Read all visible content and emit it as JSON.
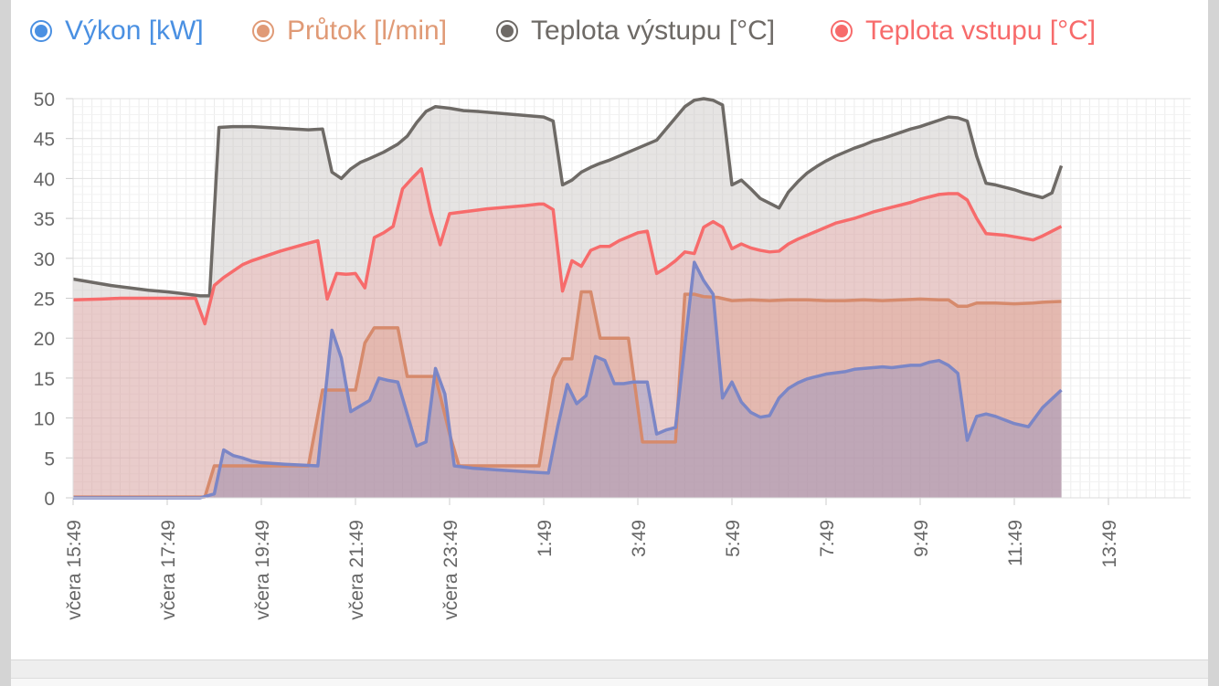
{
  "chart_data": {
    "type": "area",
    "ylim": [
      0,
      50
    ],
    "yticks": [
      0,
      5,
      10,
      15,
      20,
      25,
      30,
      35,
      40,
      45,
      50
    ],
    "xticks": [
      "včera 15:49",
      "včera 17:49",
      "včera 19:49",
      "včera 21:49",
      "včera 23:49",
      "1:49",
      "3:49",
      "5:49",
      "7:49",
      "9:49",
      "11:49",
      "13:49"
    ],
    "x_start": "včera 15:49",
    "grid": true,
    "legend_position": "top",
    "series": [
      {
        "name": "Výkon [kW]",
        "color": "#4a90e2",
        "line_color": "#7b86c6",
        "points": [
          [
            0,
            0
          ],
          [
            2.7,
            0
          ],
          [
            3,
            0.5
          ],
          [
            3.2,
            6
          ],
          [
            3.4,
            5.3
          ],
          [
            3.6,
            5
          ],
          [
            3.8,
            4.6
          ],
          [
            4,
            4.4
          ],
          [
            4.5,
            4.2
          ],
          [
            5.2,
            4
          ],
          [
            5.5,
            21
          ],
          [
            5.7,
            17.5
          ],
          [
            5.9,
            10.8
          ],
          [
            6.1,
            11.5
          ],
          [
            6.3,
            12.2
          ],
          [
            6.5,
            15
          ],
          [
            6.7,
            14.7
          ],
          [
            6.9,
            14.5
          ],
          [
            7.1,
            10.5
          ],
          [
            7.3,
            6.5
          ],
          [
            7.5,
            7
          ],
          [
            7.7,
            16.2
          ],
          [
            7.9,
            13
          ],
          [
            8.1,
            4
          ],
          [
            8.5,
            3.7
          ],
          [
            9,
            3.5
          ],
          [
            9.8,
            3.2
          ],
          [
            10.1,
            3.1
          ],
          [
            10.3,
            9
          ],
          [
            10.5,
            14.2
          ],
          [
            10.7,
            11.8
          ],
          [
            10.9,
            12.8
          ],
          [
            11.1,
            17.7
          ],
          [
            11.3,
            17.2
          ],
          [
            11.5,
            14.3
          ],
          [
            11.7,
            14.3
          ],
          [
            11.9,
            14.5
          ],
          [
            12.2,
            14.5
          ],
          [
            12.4,
            8
          ],
          [
            12.6,
            8.5
          ],
          [
            12.8,
            8.8
          ],
          [
            13.2,
            29.5
          ],
          [
            13.4,
            27.2
          ],
          [
            13.6,
            25.5
          ],
          [
            13.8,
            12.5
          ],
          [
            14,
            14.5
          ],
          [
            14.2,
            12
          ],
          [
            14.4,
            10.7
          ],
          [
            14.6,
            10.1
          ],
          [
            14.8,
            10.3
          ],
          [
            15,
            12.5
          ],
          [
            15.2,
            13.7
          ],
          [
            15.4,
            14.4
          ],
          [
            15.6,
            14.9
          ],
          [
            15.8,
            15.2
          ],
          [
            16,
            15.5
          ],
          [
            16.4,
            15.8
          ],
          [
            16.6,
            16.1
          ],
          [
            17,
            16.3
          ],
          [
            17.2,
            16.4
          ],
          [
            17.4,
            16.3
          ],
          [
            17.8,
            16.6
          ],
          [
            18,
            16.6
          ],
          [
            18.2,
            17
          ],
          [
            18.4,
            17.2
          ],
          [
            18.6,
            16.6
          ],
          [
            18.8,
            15.6
          ],
          [
            19,
            7.2
          ],
          [
            19.2,
            10.2
          ],
          [
            19.4,
            10.5
          ],
          [
            19.6,
            10.2
          ],
          [
            20,
            9.3
          ],
          [
            20.3,
            8.9
          ],
          [
            20.6,
            11.3
          ],
          [
            21,
            13.5
          ]
        ]
      },
      {
        "name": "Průtok [l/min]",
        "color": "#e09a76",
        "line_color": "#d68a6c",
        "points": [
          [
            0,
            0.1
          ],
          [
            2.8,
            0.1
          ],
          [
            3,
            4
          ],
          [
            3.5,
            4
          ],
          [
            4,
            4
          ],
          [
            5,
            4
          ],
          [
            5.3,
            13.5
          ],
          [
            5.6,
            13.5
          ],
          [
            6,
            13.5
          ],
          [
            6.2,
            19.4
          ],
          [
            6.4,
            21.3
          ],
          [
            6.9,
            21.3
          ],
          [
            7.1,
            15.2
          ],
          [
            7.4,
            15.2
          ],
          [
            7.7,
            15.2
          ],
          [
            8,
            8
          ],
          [
            8.2,
            4
          ],
          [
            9,
            4
          ],
          [
            9.5,
            4
          ],
          [
            9.9,
            4
          ],
          [
            10.2,
            15
          ],
          [
            10.4,
            17.4
          ],
          [
            10.6,
            17.4
          ],
          [
            10.8,
            25.8
          ],
          [
            11,
            25.8
          ],
          [
            11.2,
            20
          ],
          [
            11.4,
            20
          ],
          [
            11.8,
            20
          ],
          [
            12.1,
            7
          ],
          [
            12.5,
            7
          ],
          [
            12.8,
            7
          ],
          [
            13,
            25.5
          ],
          [
            13.2,
            25.5
          ],
          [
            13.4,
            25.2
          ],
          [
            13.7,
            25.1
          ],
          [
            14,
            24.7
          ],
          [
            14.4,
            24.8
          ],
          [
            14.8,
            24.7
          ],
          [
            15.2,
            24.8
          ],
          [
            15.6,
            24.8
          ],
          [
            16,
            24.7
          ],
          [
            16.4,
            24.7
          ],
          [
            16.8,
            24.8
          ],
          [
            17.2,
            24.7
          ],
          [
            17.6,
            24.8
          ],
          [
            18,
            24.9
          ],
          [
            18.4,
            24.8
          ],
          [
            18.6,
            24.8
          ],
          [
            18.8,
            24
          ],
          [
            19,
            24
          ],
          [
            19.2,
            24.4
          ],
          [
            19.6,
            24.4
          ],
          [
            20,
            24.3
          ],
          [
            20.4,
            24.4
          ],
          [
            20.6,
            24.5
          ],
          [
            21,
            24.6
          ]
        ]
      },
      {
        "name": "Teplota výstupu [°C]",
        "color": "#6e6a66",
        "line_color": "#6e6a66",
        "points": [
          [
            0,
            27.4
          ],
          [
            0.4,
            27
          ],
          [
            0.8,
            26.6
          ],
          [
            1.2,
            26.3
          ],
          [
            1.6,
            26
          ],
          [
            2,
            25.8
          ],
          [
            2.3,
            25.6
          ],
          [
            2.7,
            25.3
          ],
          [
            2.9,
            25.3
          ],
          [
            3.1,
            46.4
          ],
          [
            3.4,
            46.5
          ],
          [
            3.8,
            46.5
          ],
          [
            4.4,
            46.3
          ],
          [
            5,
            46.1
          ],
          [
            5.3,
            46.2
          ],
          [
            5.5,
            40.8
          ],
          [
            5.7,
            40
          ],
          [
            5.9,
            41.2
          ],
          [
            6.1,
            42
          ],
          [
            6.3,
            42.5
          ],
          [
            6.6,
            43.3
          ],
          [
            6.9,
            44.3
          ],
          [
            7.1,
            45.3
          ],
          [
            7.3,
            47
          ],
          [
            7.5,
            48.4
          ],
          [
            7.7,
            49
          ],
          [
            8,
            48.8
          ],
          [
            8.3,
            48.5
          ],
          [
            8.6,
            48.4
          ],
          [
            9,
            48.2
          ],
          [
            9.4,
            48
          ],
          [
            9.8,
            47.8
          ],
          [
            10,
            47.7
          ],
          [
            10.2,
            47.2
          ],
          [
            10.4,
            39.2
          ],
          [
            10.6,
            39.8
          ],
          [
            10.8,
            40.8
          ],
          [
            11,
            41.4
          ],
          [
            11.2,
            41.9
          ],
          [
            11.4,
            42.3
          ],
          [
            11.6,
            42.8
          ],
          [
            11.8,
            43.3
          ],
          [
            12,
            43.8
          ],
          [
            12.4,
            44.8
          ],
          [
            12.6,
            46.2
          ],
          [
            12.8,
            47.6
          ],
          [
            13,
            49
          ],
          [
            13.2,
            49.8
          ],
          [
            13.4,
            50
          ],
          [
            13.6,
            49.8
          ],
          [
            13.8,
            49.2
          ],
          [
            14,
            39.2
          ],
          [
            14.2,
            39.8
          ],
          [
            14.4,
            38.7
          ],
          [
            14.6,
            37.5
          ],
          [
            14.8,
            36.9
          ],
          [
            15,
            36.3
          ],
          [
            15.2,
            38.3
          ],
          [
            15.4,
            39.6
          ],
          [
            15.6,
            40.7
          ],
          [
            15.8,
            41.5
          ],
          [
            16,
            42.2
          ],
          [
            16.2,
            42.8
          ],
          [
            16.4,
            43.3
          ],
          [
            16.6,
            43.8
          ],
          [
            16.8,
            44.2
          ],
          [
            17,
            44.7
          ],
          [
            17.2,
            45
          ],
          [
            17.4,
            45.4
          ],
          [
            17.6,
            45.8
          ],
          [
            17.8,
            46.2
          ],
          [
            18,
            46.5
          ],
          [
            18.2,
            46.9
          ],
          [
            18.4,
            47.3
          ],
          [
            18.6,
            47.7
          ],
          [
            18.8,
            47.6
          ],
          [
            19,
            47.2
          ],
          [
            19.2,
            42.8
          ],
          [
            19.4,
            39.4
          ],
          [
            19.6,
            39.2
          ],
          [
            19.8,
            38.9
          ],
          [
            20,
            38.6
          ],
          [
            20.2,
            38.2
          ],
          [
            20.4,
            37.9
          ],
          [
            20.6,
            37.6
          ],
          [
            20.8,
            38.2
          ],
          [
            21,
            41.6
          ]
        ]
      },
      {
        "name": "Teplota vstupu [°C]",
        "color": "#f76b6b",
        "line_color": "#f76b6b",
        "points": [
          [
            0,
            24.8
          ],
          [
            0.6,
            24.9
          ],
          [
            1,
            25
          ],
          [
            1.6,
            25
          ],
          [
            2.2,
            25
          ],
          [
            2.6,
            25
          ],
          [
            2.8,
            21.8
          ],
          [
            3,
            26.6
          ],
          [
            3.2,
            27.6
          ],
          [
            3.4,
            28.4
          ],
          [
            3.6,
            29.2
          ],
          [
            3.8,
            29.7
          ],
          [
            4.1,
            30.3
          ],
          [
            4.4,
            30.9
          ],
          [
            4.7,
            31.4
          ],
          [
            5,
            31.9
          ],
          [
            5.2,
            32.2
          ],
          [
            5.4,
            24.9
          ],
          [
            5.6,
            28.1
          ],
          [
            5.8,
            28
          ],
          [
            6,
            28.1
          ],
          [
            6.2,
            26.3
          ],
          [
            6.4,
            32.6
          ],
          [
            6.6,
            33.2
          ],
          [
            6.8,
            34
          ],
          [
            7,
            38.7
          ],
          [
            7.2,
            40
          ],
          [
            7.4,
            41.2
          ],
          [
            7.6,
            35.8
          ],
          [
            7.8,
            31.7
          ],
          [
            8,
            35.6
          ],
          [
            8.4,
            35.9
          ],
          [
            8.8,
            36.2
          ],
          [
            9.2,
            36.4
          ],
          [
            9.6,
            36.6
          ],
          [
            9.9,
            36.8
          ],
          [
            10,
            36.8
          ],
          [
            10.2,
            36.1
          ],
          [
            10.4,
            25.9
          ],
          [
            10.6,
            29.7
          ],
          [
            10.8,
            29
          ],
          [
            11,
            31
          ],
          [
            11.2,
            31.5
          ],
          [
            11.4,
            31.5
          ],
          [
            11.6,
            32.2
          ],
          [
            11.8,
            32.7
          ],
          [
            12,
            33.2
          ],
          [
            12.2,
            33.4
          ],
          [
            12.4,
            28.1
          ],
          [
            12.6,
            28.8
          ],
          [
            12.8,
            29.7
          ],
          [
            13,
            30.8
          ],
          [
            13.2,
            30.6
          ],
          [
            13.4,
            33.9
          ],
          [
            13.6,
            34.6
          ],
          [
            13.8,
            33.9
          ],
          [
            14,
            31.2
          ],
          [
            14.2,
            31.8
          ],
          [
            14.4,
            31.3
          ],
          [
            14.6,
            31
          ],
          [
            14.8,
            30.8
          ],
          [
            15,
            30.9
          ],
          [
            15.2,
            31.8
          ],
          [
            15.4,
            32.4
          ],
          [
            15.6,
            32.9
          ],
          [
            15.8,
            33.4
          ],
          [
            16,
            33.9
          ],
          [
            16.2,
            34.4
          ],
          [
            16.4,
            34.7
          ],
          [
            16.6,
            35
          ],
          [
            16.8,
            35.4
          ],
          [
            17,
            35.8
          ],
          [
            17.2,
            36.1
          ],
          [
            17.4,
            36.4
          ],
          [
            17.6,
            36.7
          ],
          [
            17.8,
            37
          ],
          [
            18,
            37.4
          ],
          [
            18.2,
            37.7
          ],
          [
            18.4,
            38
          ],
          [
            18.6,
            38.1
          ],
          [
            18.8,
            38.1
          ],
          [
            19,
            37.3
          ],
          [
            19.2,
            35
          ],
          [
            19.4,
            33.1
          ],
          [
            19.6,
            33
          ],
          [
            19.8,
            32.9
          ],
          [
            20,
            32.7
          ],
          [
            20.2,
            32.5
          ],
          [
            20.4,
            32.3
          ],
          [
            20.6,
            32.8
          ],
          [
            21,
            34
          ]
        ]
      }
    ]
  },
  "icons": {
    "legend_marker": "circle-dot-icon"
  }
}
